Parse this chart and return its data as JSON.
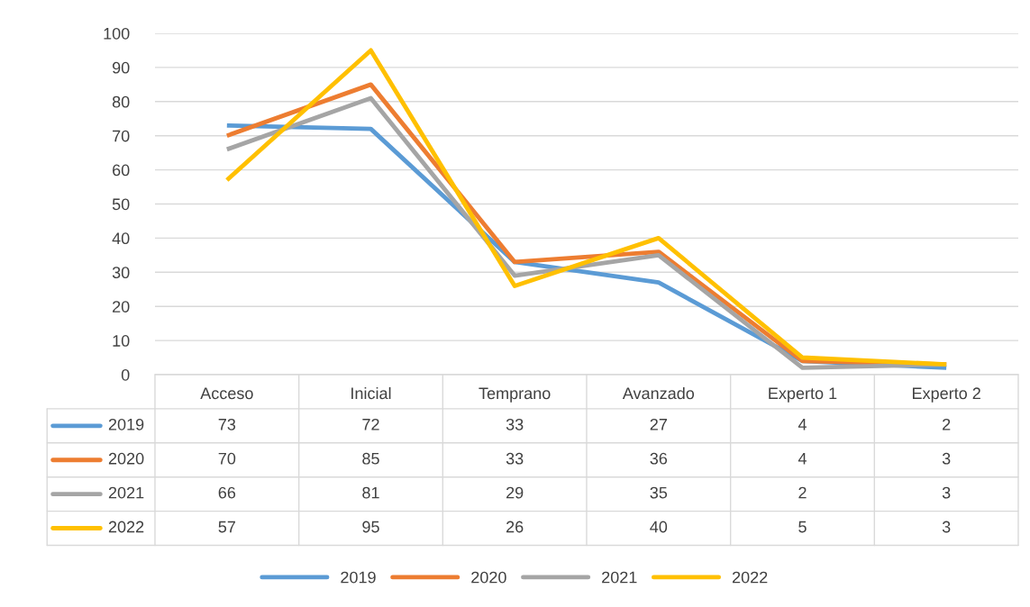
{
  "chart_data": {
    "type": "line",
    "categories": [
      "Acceso",
      "Inicial",
      "Temprano",
      "Avanzado",
      "Experto 1",
      "Experto 2"
    ],
    "series": [
      {
        "name": "2019",
        "color": "#5b9bd5",
        "values": [
          73,
          72,
          33,
          27,
          4,
          2
        ]
      },
      {
        "name": "2020",
        "color": "#ed7d31",
        "values": [
          70,
          85,
          33,
          36,
          4,
          3
        ]
      },
      {
        "name": "2021",
        "color": "#a5a5a5",
        "values": [
          66,
          81,
          29,
          35,
          2,
          3
        ]
      },
      {
        "name": "2022",
        "color": "#ffc000",
        "values": [
          57,
          95,
          26,
          40,
          5,
          3
        ]
      }
    ],
    "ylim": [
      0,
      100
    ],
    "yticks": [
      0,
      10,
      20,
      30,
      40,
      50,
      60,
      70,
      80,
      90,
      100
    ],
    "grid": "y",
    "legend": "bottom",
    "data_labels": true,
    "marker": "none",
    "line_style": "solid"
  }
}
